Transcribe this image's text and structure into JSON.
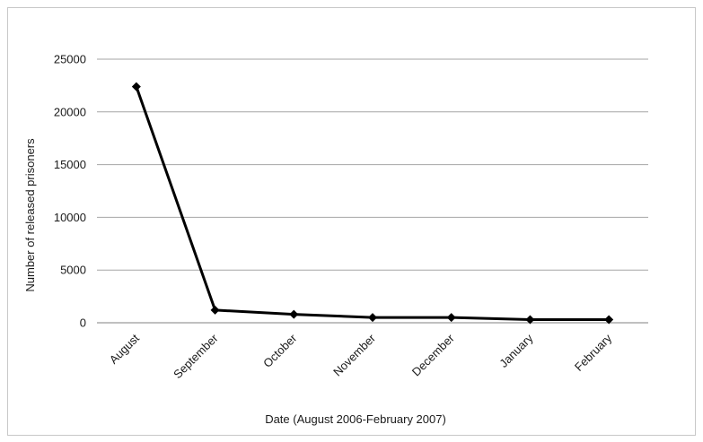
{
  "chart_data": {
    "type": "line",
    "title": "",
    "xlabel": "Date (August 2006-February  2007)",
    "ylabel": "Number of released prisoners",
    "categories": [
      "August",
      "September",
      "October",
      "November",
      "December",
      "January",
      "February"
    ],
    "series": [
      {
        "values": [
          22400,
          1200,
          800,
          500,
          500,
          300,
          300
        ]
      }
    ],
    "ylim": [
      0,
      25000
    ],
    "yticks": [
      "0",
      "5000",
      "10000",
      "15000",
      "20000",
      "25000"
    ],
    "grid": true,
    "legend": "none",
    "colors": {
      "line": "#000000",
      "grid": "#a6a6a6",
      "axis": "#808080"
    }
  }
}
